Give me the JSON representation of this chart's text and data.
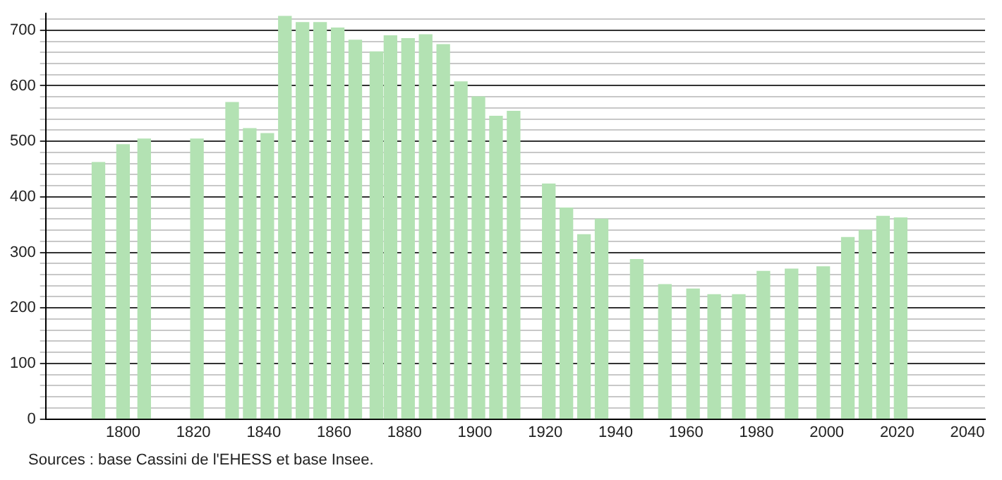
{
  "chart_data": {
    "type": "bar",
    "x": [
      1793,
      1800,
      1806,
      1821,
      1831,
      1836,
      1841,
      1846,
      1851,
      1856,
      1861,
      1866,
      1872,
      1876,
      1881,
      1886,
      1891,
      1896,
      1901,
      1906,
      1911,
      1921,
      1926,
      1931,
      1936,
      1946,
      1954,
      1962,
      1968,
      1975,
      1982,
      1990,
      1999,
      2006,
      2011,
      2016,
      2021
    ],
    "values": [
      462,
      494,
      504,
      504,
      570,
      523,
      514,
      725,
      714,
      714,
      704,
      682,
      661,
      690,
      685,
      692,
      674,
      607,
      580,
      545,
      554,
      423,
      380,
      332,
      360,
      287,
      242,
      234,
      224,
      224,
      266,
      270,
      274,
      327,
      340,
      365,
      362
    ],
    "color": "#b3e2b3",
    "xlim": [
      1778,
      2045
    ],
    "xticks": [
      1800,
      1820,
      1840,
      1860,
      1880,
      1900,
      1920,
      1940,
      1960,
      1980,
      2000,
      2020,
      2040
    ],
    "ylim": [
      0,
      730
    ],
    "yticks": [
      0,
      {
        "value": 20,
        "label": null
      },
      {
        "value": 40,
        "label": null
      },
      {
        "value": 60,
        "label": null
      },
      {
        "value": 80,
        "label": null
      },
      100,
      {
        "value": 120,
        "label": null
      },
      {
        "value": 140,
        "label": null
      },
      {
        "value": 160,
        "label": null
      },
      {
        "value": 180,
        "label": null
      },
      200,
      {
        "value": 220,
        "label": null
      },
      {
        "value": 240,
        "label": null
      },
      {
        "value": 260,
        "label": null
      },
      {
        "value": 280,
        "label": null
      },
      300,
      {
        "value": 320,
        "label": null
      },
      {
        "value": 340,
        "label": null
      },
      {
        "value": 360,
        "label": null
      },
      {
        "value": 380,
        "label": null
      },
      400,
      {
        "value": 420,
        "label": null
      },
      {
        "value": 440,
        "label": null
      },
      {
        "value": 460,
        "label": null
      },
      {
        "value": 480,
        "label": null
      },
      500,
      {
        "value": 520,
        "label": null
      },
      {
        "value": 540,
        "label": null
      },
      {
        "value": 560,
        "label": null
      },
      {
        "value": 580,
        "label": null
      },
      600,
      {
        "value": 620,
        "label": null
      },
      {
        "value": 640,
        "label": null
      },
      {
        "value": 660,
        "label": null
      },
      {
        "value": 680,
        "label": null
      },
      700,
      {
        "value": 720,
        "label": null
      }
    ],
    "grid": "y",
    "annotations": [
      "Sources : base Cassini de l'EHESS et base Insee."
    ]
  }
}
